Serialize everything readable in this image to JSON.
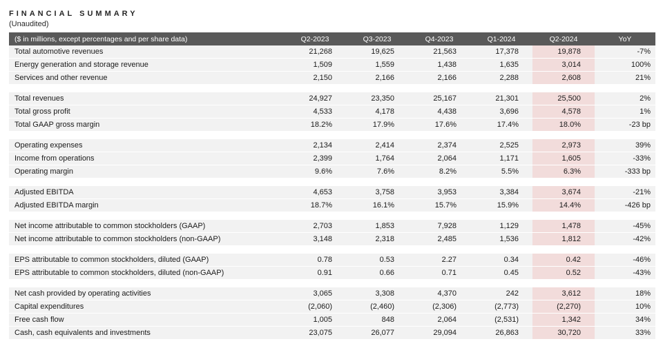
{
  "page": {
    "title": "FINANCIAL SUMMARY",
    "subtitle": "(Unaudited)"
  },
  "table": {
    "header": [
      "($ in millions, except percentages and per share data)",
      "Q2-2023",
      "Q3-2023",
      "Q4-2023",
      "Q1-2024",
      "Q2-2024",
      "YoY"
    ],
    "highlight_column": "Q2-2024",
    "highlight_value_index": 4,
    "colors": {
      "header_bg": "#595959",
      "row_bg": "#f2f2f2",
      "highlight_bg": "#f2dcdb"
    },
    "rows": [
      {
        "label": "Total automotive revenues",
        "values": [
          "21,268",
          "19,625",
          "21,563",
          "17,378",
          "19,878",
          "-7%"
        ]
      },
      {
        "label": "Energy generation and storage revenue",
        "values": [
          "1,509",
          "1,559",
          "1,438",
          "1,635",
          "3,014",
          "100%"
        ]
      },
      {
        "label": "Services and other revenue",
        "values": [
          "2,150",
          "2,166",
          "2,166",
          "2,288",
          "2,608",
          "21%"
        ]
      },
      {
        "spacer": true
      },
      {
        "label": "Total revenues",
        "values": [
          "24,927",
          "23,350",
          "25,167",
          "21,301",
          "25,500",
          "2%"
        ]
      },
      {
        "label": "Total gross profit",
        "values": [
          "4,533",
          "4,178",
          "4,438",
          "3,696",
          "4,578",
          "1%"
        ]
      },
      {
        "label": "Total GAAP gross margin",
        "values": [
          "18.2%",
          "17.9%",
          "17.6%",
          "17.4%",
          "18.0%",
          "-23 bp"
        ]
      },
      {
        "spacer": true
      },
      {
        "label": "Operating expenses",
        "values": [
          "2,134",
          "2,414",
          "2,374",
          "2,525",
          "2,973",
          "39%"
        ]
      },
      {
        "label": "Income from operations",
        "values": [
          "2,399",
          "1,764",
          "2,064",
          "1,171",
          "1,605",
          "-33%"
        ]
      },
      {
        "label": "Operating margin",
        "values": [
          "9.6%",
          "7.6%",
          "8.2%",
          "5.5%",
          "6.3%",
          "-333 bp"
        ]
      },
      {
        "spacer": true
      },
      {
        "label": "Adjusted EBITDA",
        "values": [
          "4,653",
          "3,758",
          "3,953",
          "3,384",
          "3,674",
          "-21%"
        ]
      },
      {
        "label": "Adjusted EBITDA margin",
        "values": [
          "18.7%",
          "16.1%",
          "15.7%",
          "15.9%",
          "14.4%",
          "-426 bp"
        ]
      },
      {
        "spacer": true
      },
      {
        "label": "Net income attributable to common stockholders (GAAP)",
        "values": [
          "2,703",
          "1,853",
          "7,928",
          "1,129",
          "1,478",
          "-45%"
        ]
      },
      {
        "label": "Net income attributable to common stockholders (non-GAAP)",
        "values": [
          "3,148",
          "2,318",
          "2,485",
          "1,536",
          "1,812",
          "-42%"
        ]
      },
      {
        "spacer": true
      },
      {
        "label": "EPS attributable to common stockholders, diluted (GAAP)",
        "values": [
          "0.78",
          "0.53",
          "2.27",
          "0.34",
          "0.42",
          "-46%"
        ]
      },
      {
        "label": "EPS attributable to common stockholders, diluted (non-GAAP)",
        "values": [
          "0.91",
          "0.66",
          "0.71",
          "0.45",
          "0.52",
          "-43%"
        ]
      },
      {
        "spacer": true
      },
      {
        "label": "Net cash provided by operating activities",
        "values": [
          "3,065",
          "3,308",
          "4,370",
          "242",
          "3,612",
          "18%"
        ]
      },
      {
        "label": "Capital expenditures",
        "values": [
          "(2,060)",
          "(2,460)",
          "(2,306)",
          "(2,773)",
          "(2,270)",
          "10%"
        ]
      },
      {
        "label": "Free cash flow",
        "values": [
          "1,005",
          "848",
          "2,064",
          "(2,531)",
          "1,342",
          "34%"
        ]
      },
      {
        "label": "Cash, cash equivalents and investments",
        "values": [
          "23,075",
          "26,077",
          "29,094",
          "26,863",
          "30,720",
          "33%"
        ]
      }
    ]
  }
}
